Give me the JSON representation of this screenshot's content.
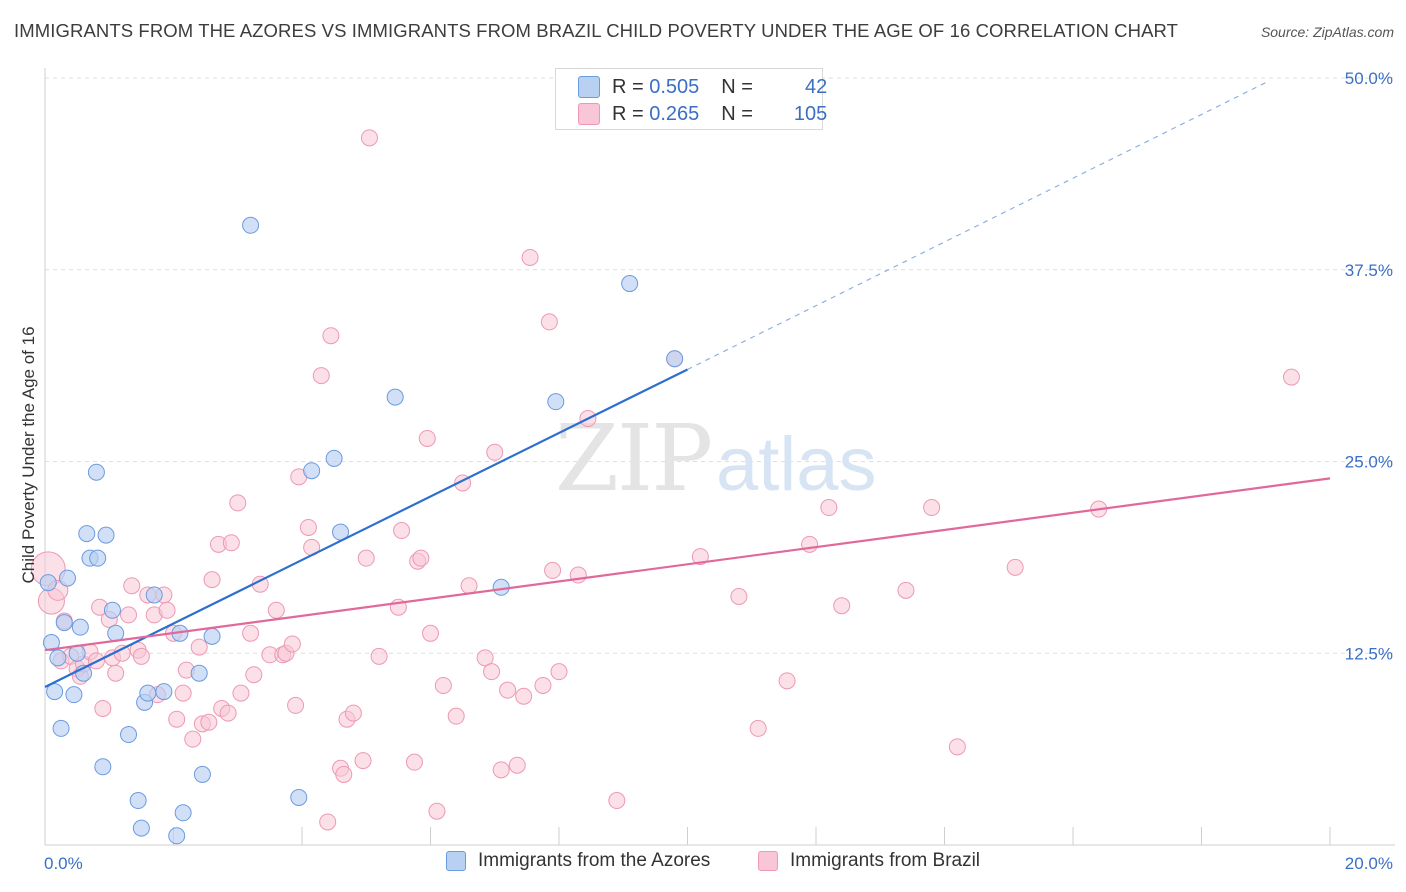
{
  "header": {
    "title": "IMMIGRANTS FROM THE AZORES VS IMMIGRANTS FROM BRAZIL CHILD POVERTY UNDER THE AGE OF 16 CORRELATION CHART",
    "source": "Source: ZipAtlas.com"
  },
  "watermark": {
    "zip": "ZIP",
    "atlas": "atlas"
  },
  "legend": {
    "rows": [
      {
        "r_label": "R = ",
        "r_value": "0.505",
        "n_label": "N = ",
        "n_value": "42"
      },
      {
        "r_label": "R = ",
        "r_value": "0.265",
        "n_label": "N = ",
        "n_value": "105"
      }
    ]
  },
  "colors": {
    "azores_fill": "#b8d0f2",
    "azores_stroke": "#6b9be0",
    "azores_line": "#2c6fcf",
    "brazil_fill": "#f8c6d6",
    "brazil_stroke": "#ee98b4",
    "brazil_line": "#e0699a",
    "axis_label": "#3a6fc4",
    "grid": "#dedede"
  },
  "chart_data": {
    "type": "scatter",
    "title": "IMMIGRANTS FROM THE AZORES VS IMMIGRANTS FROM BRAZIL CHILD POVERTY UNDER THE AGE OF 16 CORRELATION CHART",
    "xlabel": "",
    "ylabel": "Child Poverty Under the Age of 16",
    "xlim": [
      0,
      20
    ],
    "ylim": [
      0,
      50
    ],
    "x_tick_labels": [
      "0.0%",
      "20.0%"
    ],
    "y_ticks": [
      12.5,
      25.0,
      37.5,
      50.0
    ],
    "y_tick_labels": [
      "12.5%",
      "25.0%",
      "37.5%",
      "50.0%"
    ],
    "legend_placement": "top-center",
    "series": [
      {
        "name": "Immigrants from the Azores",
        "R": 0.505,
        "N": 42,
        "trend": {
          "x0": 0.0,
          "y0": 10.3,
          "x1": 10.0,
          "y1": 31.0,
          "dashed_to_x": 19.0,
          "dashed_to_y": 49.7
        },
        "points": [
          [
            0.05,
            17.1
          ],
          [
            0.1,
            13.2
          ],
          [
            0.15,
            10.0
          ],
          [
            0.2,
            12.2
          ],
          [
            0.25,
            7.6
          ],
          [
            0.3,
            14.5
          ],
          [
            0.35,
            17.4
          ],
          [
            0.45,
            9.8
          ],
          [
            0.5,
            12.5
          ],
          [
            0.55,
            14.2
          ],
          [
            0.6,
            11.2
          ],
          [
            0.65,
            20.3
          ],
          [
            0.7,
            18.7
          ],
          [
            0.8,
            24.3
          ],
          [
            0.82,
            18.7
          ],
          [
            0.9,
            5.1
          ],
          [
            0.95,
            20.2
          ],
          [
            1.05,
            15.3
          ],
          [
            1.1,
            13.8
          ],
          [
            1.3,
            7.2
          ],
          [
            1.45,
            2.9
          ],
          [
            1.5,
            1.1
          ],
          [
            1.55,
            9.3
          ],
          [
            1.6,
            9.9
          ],
          [
            1.7,
            16.3
          ],
          [
            1.85,
            10.0
          ],
          [
            2.05,
            0.6
          ],
          [
            2.1,
            13.8
          ],
          [
            2.15,
            2.1
          ],
          [
            2.4,
            11.2
          ],
          [
            2.45,
            4.6
          ],
          [
            2.6,
            13.6
          ],
          [
            3.2,
            40.4
          ],
          [
            3.95,
            3.1
          ],
          [
            4.15,
            24.4
          ],
          [
            4.5,
            25.2
          ],
          [
            4.6,
            20.4
          ],
          [
            5.45,
            29.2
          ],
          [
            7.1,
            16.8
          ],
          [
            7.95,
            28.9
          ],
          [
            9.1,
            36.6
          ],
          [
            9.8,
            31.7
          ]
        ]
      },
      {
        "name": "Immigrants from Brazil",
        "R": 0.265,
        "N": 105,
        "trend": {
          "x0": 0.0,
          "y0": 12.7,
          "x1": 20.0,
          "y1": 23.9
        },
        "points": [
          [
            0.05,
            18.0
          ],
          [
            0.1,
            15.9
          ],
          [
            0.2,
            16.6
          ],
          [
            0.25,
            12.0
          ],
          [
            0.3,
            14.6
          ],
          [
            0.4,
            12.3
          ],
          [
            0.5,
            11.5
          ],
          [
            0.55,
            11.0
          ],
          [
            0.6,
            11.8
          ],
          [
            0.7,
            12.6
          ],
          [
            0.8,
            12.0
          ],
          [
            0.85,
            15.5
          ],
          [
            0.9,
            8.9
          ],
          [
            1.0,
            14.7
          ],
          [
            1.05,
            12.2
          ],
          [
            1.1,
            11.2
          ],
          [
            1.2,
            12.5
          ],
          [
            1.3,
            15.0
          ],
          [
            1.35,
            16.9
          ],
          [
            1.45,
            12.7
          ],
          [
            1.5,
            12.3
          ],
          [
            1.6,
            16.3
          ],
          [
            1.7,
            15.0
          ],
          [
            1.75,
            9.8
          ],
          [
            1.85,
            16.3
          ],
          [
            1.9,
            15.3
          ],
          [
            2.0,
            13.8
          ],
          [
            2.05,
            8.2
          ],
          [
            2.15,
            9.9
          ],
          [
            2.2,
            11.4
          ],
          [
            2.3,
            6.9
          ],
          [
            2.4,
            12.9
          ],
          [
            2.45,
            7.9
          ],
          [
            2.55,
            8.0
          ],
          [
            2.6,
            17.3
          ],
          [
            2.7,
            19.6
          ],
          [
            2.75,
            8.9
          ],
          [
            2.85,
            8.6
          ],
          [
            2.9,
            19.7
          ],
          [
            3.0,
            22.3
          ],
          [
            3.05,
            9.9
          ],
          [
            3.2,
            13.8
          ],
          [
            3.25,
            11.1
          ],
          [
            3.35,
            17.0
          ],
          [
            3.5,
            12.4
          ],
          [
            3.6,
            15.3
          ],
          [
            3.7,
            12.4
          ],
          [
            3.75,
            12.5
          ],
          [
            3.85,
            13.1
          ],
          [
            3.9,
            9.1
          ],
          [
            3.95,
            24.0
          ],
          [
            4.1,
            20.7
          ],
          [
            4.15,
            19.4
          ],
          [
            4.3,
            30.6
          ],
          [
            4.4,
            1.5
          ],
          [
            4.45,
            33.2
          ],
          [
            4.6,
            5.0
          ],
          [
            4.65,
            4.6
          ],
          [
            4.7,
            8.2
          ],
          [
            4.8,
            8.6
          ],
          [
            4.95,
            5.5
          ],
          [
            5.0,
            18.7
          ],
          [
            5.05,
            46.1
          ],
          [
            5.2,
            12.3
          ],
          [
            5.5,
            15.5
          ],
          [
            5.55,
            20.5
          ],
          [
            5.75,
            5.4
          ],
          [
            5.8,
            18.5
          ],
          [
            5.85,
            18.7
          ],
          [
            5.95,
            26.5
          ],
          [
            6.0,
            13.8
          ],
          [
            6.1,
            2.2
          ],
          [
            6.2,
            10.4
          ],
          [
            6.4,
            8.4
          ],
          [
            6.5,
            23.6
          ],
          [
            6.6,
            16.9
          ],
          [
            6.85,
            12.2
          ],
          [
            6.95,
            11.3
          ],
          [
            7.0,
            25.6
          ],
          [
            7.1,
            4.9
          ],
          [
            7.2,
            10.1
          ],
          [
            7.35,
            5.2
          ],
          [
            7.45,
            9.7
          ],
          [
            7.55,
            38.3
          ],
          [
            7.75,
            10.4
          ],
          [
            7.85,
            34.1
          ],
          [
            7.9,
            17.9
          ],
          [
            8.0,
            11.3
          ],
          [
            8.3,
            17.6
          ],
          [
            8.45,
            27.8
          ],
          [
            8.9,
            2.9
          ],
          [
            9.8,
            31.7
          ],
          [
            10.2,
            18.8
          ],
          [
            10.8,
            16.2
          ],
          [
            11.1,
            7.6
          ],
          [
            11.55,
            10.7
          ],
          [
            11.9,
            19.6
          ],
          [
            12.2,
            22.0
          ],
          [
            12.4,
            15.6
          ],
          [
            13.4,
            16.6
          ],
          [
            13.8,
            22.0
          ],
          [
            14.2,
            6.4
          ],
          [
            15.1,
            18.1
          ],
          [
            16.4,
            21.9
          ],
          [
            19.4,
            30.5
          ]
        ]
      }
    ]
  },
  "bottom_legend": {
    "items": [
      {
        "label": "Immigrants from the Azores"
      },
      {
        "label": "Immigrants from Brazil"
      }
    ]
  }
}
